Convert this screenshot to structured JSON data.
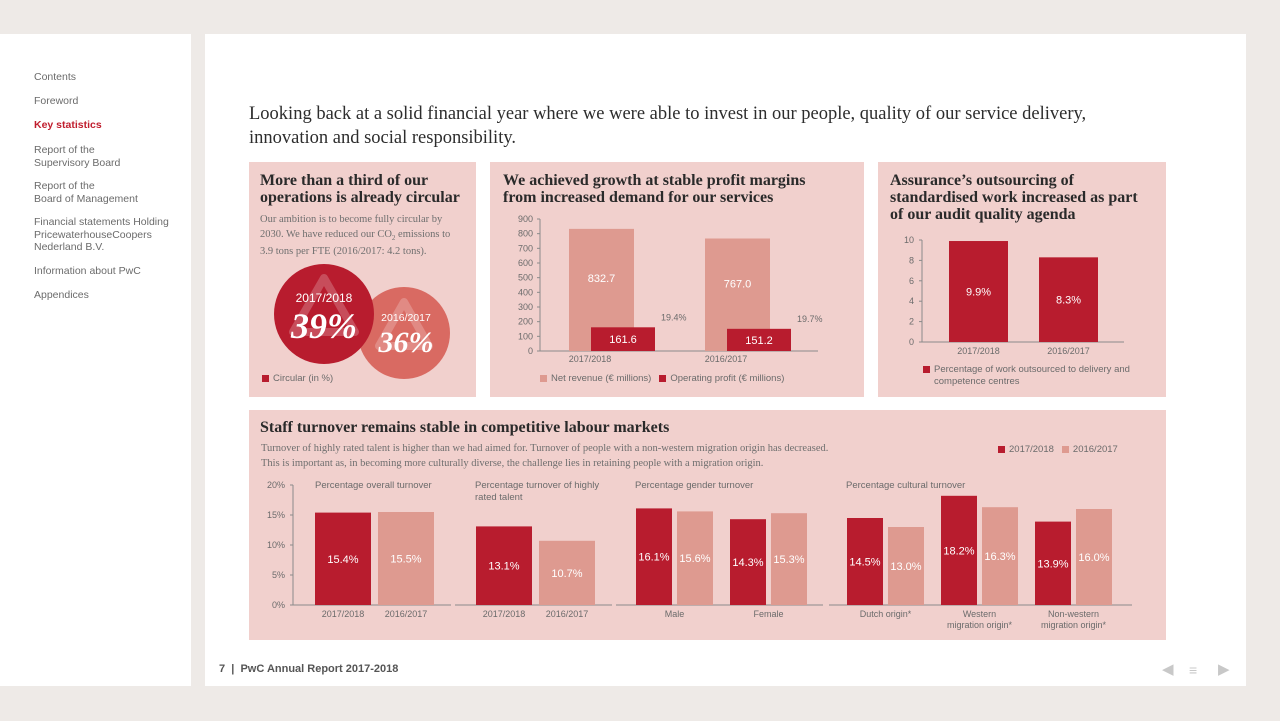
{
  "sidebar": {
    "items": [
      {
        "label": "Contents",
        "active": false
      },
      {
        "label": "Foreword",
        "active": false
      },
      {
        "label": "Key statistics",
        "active": true
      },
      {
        "label": "Report of the\nSupervisory Board",
        "active": false
      },
      {
        "label": "Report of the\nBoard of Management",
        "active": false
      },
      {
        "label": "Financial statements Holding\nPricewaterhouseCoopers\nNederland B.V.",
        "active": false
      },
      {
        "label": "Information about PwC",
        "active": false
      },
      {
        "label": "Appendices",
        "active": false
      }
    ]
  },
  "intro": "Looking back at a solid financial year where we were able to invest in our people, quality of our service delivery, innovation and social responsibility.",
  "colors": {
    "dark": "#b81c2e",
    "light": "#de9a90",
    "panel": "#f1d0cd"
  },
  "circular": {
    "title": "More than a third of our\noperations is already circular",
    "desc_before": "Our ambition is to become fully circular by 2030. We have reduced our CO",
    "desc_sub": "2",
    "desc_after": " emissions to 3.9 tons per FTE (2016/2017: 4.2 tons).",
    "big": {
      "year": "2017/2018",
      "value": "39%"
    },
    "small": {
      "year": "2016/2017",
      "value": "36%"
    },
    "icon": "recycle-icon",
    "legend": "Circular (in %)"
  },
  "growth": {
    "title": "We achieved growth at stable profit margins\nfrom increased demand for our services",
    "legend": [
      "Net revenue (€ millions)",
      "Operating profit (€ millions)"
    ]
  },
  "assurance": {
    "title": "Assurance’s outsourcing of\nstandardised work increased as part\nof our audit quality agenda",
    "legend": "Percentage of work outsourced to delivery and competence centres"
  },
  "staff": {
    "title": "Staff turnover remains stable in competitive labour markets",
    "desc1": "Turnover of highly rated talent is higher than we had aimed for. Turnover of people with a non-western migration origin has decreased.",
    "desc2": "This is important as, in becoming more culturally diverse, the challenge lies in retaining people with a migration origin.",
    "legend": [
      "2017/2018",
      "2016/2017"
    ],
    "group_titles": [
      "Percentage overall turnover",
      "Percentage turnover of highly rated talent",
      "Percentage gender turnover",
      "Percentage cultural turnover"
    ]
  },
  "footer": {
    "page": "7",
    "sep": "|",
    "title": "PwC Annual Report 2017-2018"
  },
  "nav": {
    "prev_icon": "triangle-left-icon",
    "menu_icon": "menu-icon",
    "next_icon": "triangle-right-icon"
  },
  "chart_data": [
    {
      "type": "bar",
      "categories": [
        "2017/2018",
        "2016/2017"
      ],
      "series": [
        {
          "name": "Net revenue (€ millions)",
          "values": [
            832.7,
            767.0
          ],
          "value_labels": [
            "832.7",
            "767.0"
          ]
        },
        {
          "name": "Operating profit (€ millions)",
          "values": [
            161.6,
            151.2
          ],
          "value_labels": [
            "161.6",
            "151.2"
          ]
        }
      ],
      "margin_labels": [
        "19.4%",
        "19.7%"
      ],
      "ylim": [
        0,
        900
      ],
      "yticks": [
        0,
        100,
        200,
        300,
        400,
        500,
        600,
        700,
        800,
        900
      ]
    },
    {
      "type": "bar",
      "categories": [
        "2017/2018",
        "2016/2017"
      ],
      "values": [
        9.9,
        8.3
      ],
      "value_labels": [
        "9.9%",
        "8.3%"
      ],
      "ylim": [
        0,
        10
      ],
      "yticks": [
        0,
        2,
        4,
        6,
        8,
        10
      ]
    },
    {
      "type": "bar",
      "ylim": [
        0,
        20
      ],
      "yticks": [
        0,
        5,
        10,
        15,
        20
      ],
      "ytick_labels": [
        "0%",
        "5%",
        "10%",
        "15%",
        "20%"
      ],
      "groups": [
        {
          "title": "Percentage overall turnover",
          "categories": [
            "2017/2018",
            "2016/2017"
          ],
          "values": [
            15.4,
            15.5
          ],
          "value_labels": [
            "15.4%",
            "15.5%"
          ],
          "series_index": [
            0,
            1
          ]
        },
        {
          "title": "Percentage turnover of highly rated talent",
          "categories": [
            "2017/2018",
            "2016/2017"
          ],
          "values": [
            13.1,
            10.7
          ],
          "value_labels": [
            "13.1%",
            "10.7%"
          ],
          "series_index": [
            0,
            1
          ]
        },
        {
          "title": "Percentage gender turnover",
          "categories": [
            "Male",
            "Female"
          ],
          "series": [
            {
              "name": "2017/2018",
              "values": [
                16.1,
                14.3
              ],
              "value_labels": [
                "16.1%",
                "14.3%"
              ]
            },
            {
              "name": "2016/2017",
              "values": [
                15.6,
                15.3
              ],
              "value_labels": [
                "15.6%",
                "15.3%"
              ]
            }
          ]
        },
        {
          "title": "Percentage cultural turnover",
          "categories": [
            "Dutch origin*",
            "Western\nmigration origin*",
            "Non-western\nmigration origin*"
          ],
          "series": [
            {
              "name": "2017/2018",
              "values": [
                14.5,
                18.2,
                13.9
              ],
              "value_labels": [
                "14.5%",
                "18.2%",
                "13.9%"
              ]
            },
            {
              "name": "2016/2017",
              "values": [
                13.0,
                16.3,
                16.0
              ],
              "value_labels": [
                "13.0%",
                "16.3%",
                "16.0%"
              ]
            }
          ]
        }
      ]
    }
  ]
}
